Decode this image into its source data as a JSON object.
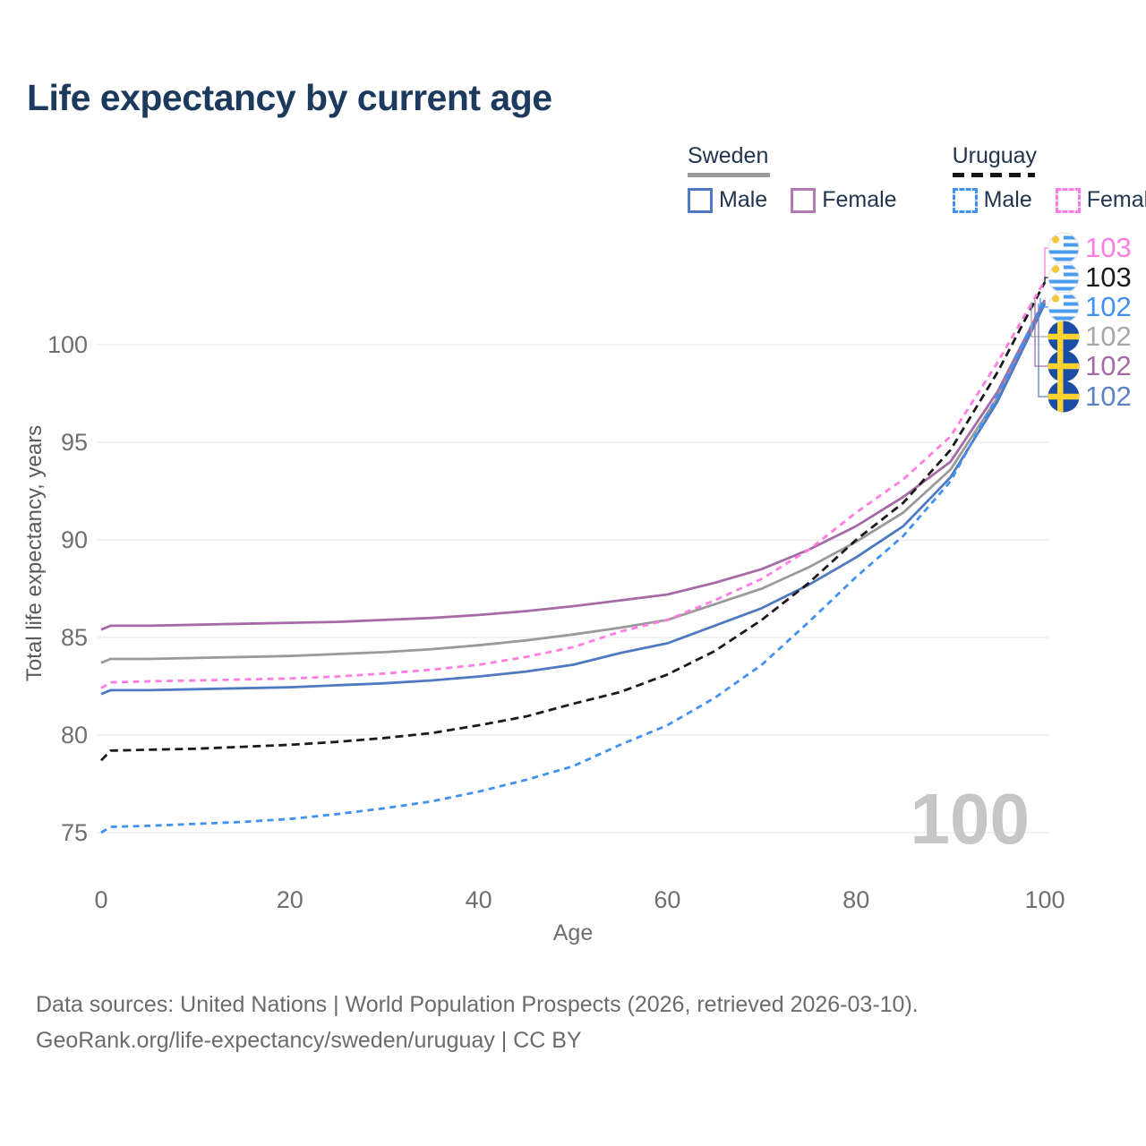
{
  "title": "Life expectancy by current age",
  "legend": {
    "groups": [
      {
        "id": "sweden",
        "label": "Sweden",
        "line_style": "solid",
        "underline_color": "#9a9a9a",
        "items": [
          {
            "label": "Male",
            "color": "#4f7ac1",
            "dashed": false
          },
          {
            "label": "Female",
            "color": "#b27ab2",
            "dashed": false
          }
        ]
      },
      {
        "id": "uruguay",
        "label": "Uruguay",
        "line_style": "dashed",
        "underline_color": "#141414",
        "items": [
          {
            "label": "Male",
            "color": "#4191f0",
            "dashed": true
          },
          {
            "label": "Female",
            "color": "#ff7ce0",
            "dashed": true
          }
        ]
      }
    ]
  },
  "watermark": "100",
  "chart_data": {
    "type": "line",
    "title": "Life expectancy by current age",
    "xlabel": "Age",
    "ylabel": "Total life expectancy, years",
    "x_ticks": [
      0,
      20,
      40,
      60,
      80,
      100
    ],
    "y_ticks": [
      75,
      80,
      85,
      90,
      95,
      100
    ],
    "xlim": [
      0,
      100
    ],
    "ylim": [
      74,
      104
    ],
    "grid": "horizontal-only",
    "gridline_color": "#e9e9e9",
    "ages": [
      0,
      1,
      5,
      10,
      15,
      20,
      25,
      30,
      35,
      40,
      45,
      50,
      55,
      60,
      65,
      70,
      75,
      80,
      85,
      90,
      95,
      100
    ],
    "series": [
      {
        "id": "sweden_total",
        "name": "Sweden (both sexes)",
        "country": "Sweden",
        "sex": "Both",
        "style": "solid",
        "color": "#9a9a9a",
        "values": [
          83.7,
          83.9,
          83.9,
          83.95,
          84.0,
          84.05,
          84.15,
          84.25,
          84.4,
          84.6,
          84.85,
          85.15,
          85.5,
          85.9,
          86.7,
          87.5,
          88.6,
          89.9,
          91.4,
          93.6,
          97.3,
          102.2
        ]
      },
      {
        "id": "sweden_female",
        "name": "Sweden Female",
        "country": "Sweden",
        "sex": "Female",
        "style": "solid",
        "color": "#a66ba6",
        "values": [
          85.4,
          85.6,
          85.6,
          85.65,
          85.7,
          85.75,
          85.8,
          85.9,
          86.0,
          86.15,
          86.35,
          86.6,
          86.9,
          87.2,
          87.8,
          88.5,
          89.5,
          90.7,
          92.2,
          94.0,
          97.6,
          102.3
        ]
      },
      {
        "id": "sweden_male",
        "name": "Sweden Male",
        "country": "Sweden",
        "sex": "Male",
        "style": "solid",
        "color": "#4f7ac1",
        "values": [
          82.1,
          82.3,
          82.3,
          82.35,
          82.4,
          82.45,
          82.55,
          82.65,
          82.8,
          83.0,
          83.25,
          83.6,
          84.2,
          84.7,
          85.6,
          86.5,
          87.7,
          89.1,
          90.7,
          93.2,
          97.1,
          102.1
        ]
      },
      {
        "id": "uruguay_total",
        "name": "Uruguay (both sexes)",
        "country": "Uruguay",
        "sex": "Both",
        "style": "dashed",
        "color": "#1a1a1a",
        "values": [
          78.7,
          79.2,
          79.25,
          79.3,
          79.4,
          79.5,
          79.65,
          79.85,
          80.1,
          80.5,
          80.95,
          81.6,
          82.2,
          83.1,
          84.3,
          85.9,
          87.8,
          90.0,
          91.9,
          94.6,
          98.6,
          103.2
        ]
      },
      {
        "id": "uruguay_female",
        "name": "Uruguay Female",
        "country": "Uruguay",
        "sex": "Female",
        "style": "dashed",
        "color": "#ff7ce0",
        "values": [
          82.4,
          82.7,
          82.75,
          82.8,
          82.85,
          82.9,
          83.0,
          83.15,
          83.35,
          83.6,
          84.0,
          84.5,
          85.3,
          85.9,
          86.9,
          88.0,
          89.5,
          91.4,
          93.1,
          95.3,
          99.1,
          103.3
        ]
      },
      {
        "id": "uruguay_male",
        "name": "Uruguay Male",
        "country": "Uruguay",
        "sex": "Male",
        "style": "dashed",
        "color": "#4191f0",
        "values": [
          75.0,
          75.3,
          75.35,
          75.45,
          75.55,
          75.7,
          75.95,
          76.25,
          76.6,
          77.1,
          77.7,
          78.4,
          79.5,
          80.5,
          81.9,
          83.6,
          85.8,
          88.1,
          90.2,
          93.0,
          97.4,
          102.4
        ]
      }
    ],
    "legend_position": "top-right",
    "end_labels": [
      {
        "series_id": "uruguay_female",
        "label": "103",
        "flag": "uruguay",
        "color": "#ff7ce0"
      },
      {
        "series_id": "uruguay_total",
        "label": "103",
        "flag": "uruguay",
        "color": "#1a1a1a"
      },
      {
        "series_id": "uruguay_male",
        "label": "102",
        "flag": "uruguay",
        "color": "#4191f0"
      },
      {
        "series_id": "sweden_total",
        "label": "102",
        "flag": "sweden",
        "color": "#a8a8a8"
      },
      {
        "series_id": "sweden_female",
        "label": "102",
        "flag": "sweden",
        "color": "#a66ba6"
      },
      {
        "series_id": "sweden_male",
        "label": "102",
        "flag": "sweden",
        "color": "#5b82c4"
      }
    ]
  },
  "footer": {
    "line1": "Data sources: United Nations | World Population Prospects (2026, retrieved 2026-03-10).",
    "line2": "GeoRank.org/life-expectancy/sweden/uruguay | CC BY"
  }
}
